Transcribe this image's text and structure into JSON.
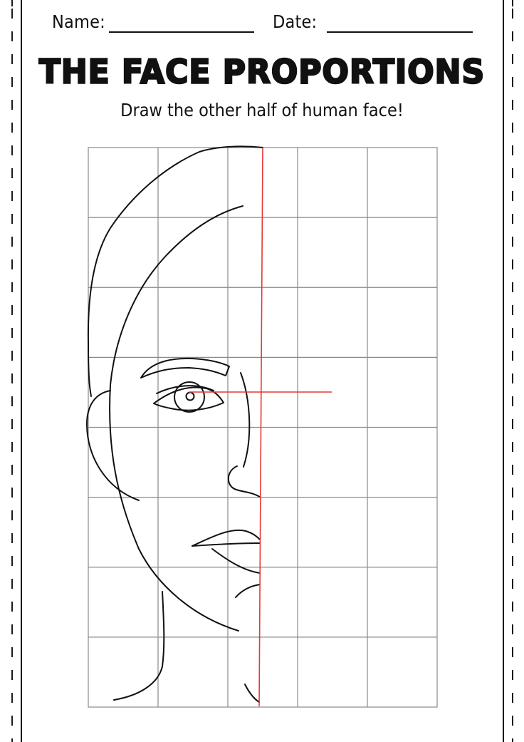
{
  "header": {
    "name_label": "Name:",
    "date_label": "Date:"
  },
  "title": "THE FACE PROPORTIONS",
  "subtitle": "Draw the other half of human face!",
  "grid": {
    "columns": 5,
    "rows": 8
  },
  "colors": {
    "ink": "#111111",
    "grid": "#8a8a8a",
    "guide": "#e53935"
  }
}
